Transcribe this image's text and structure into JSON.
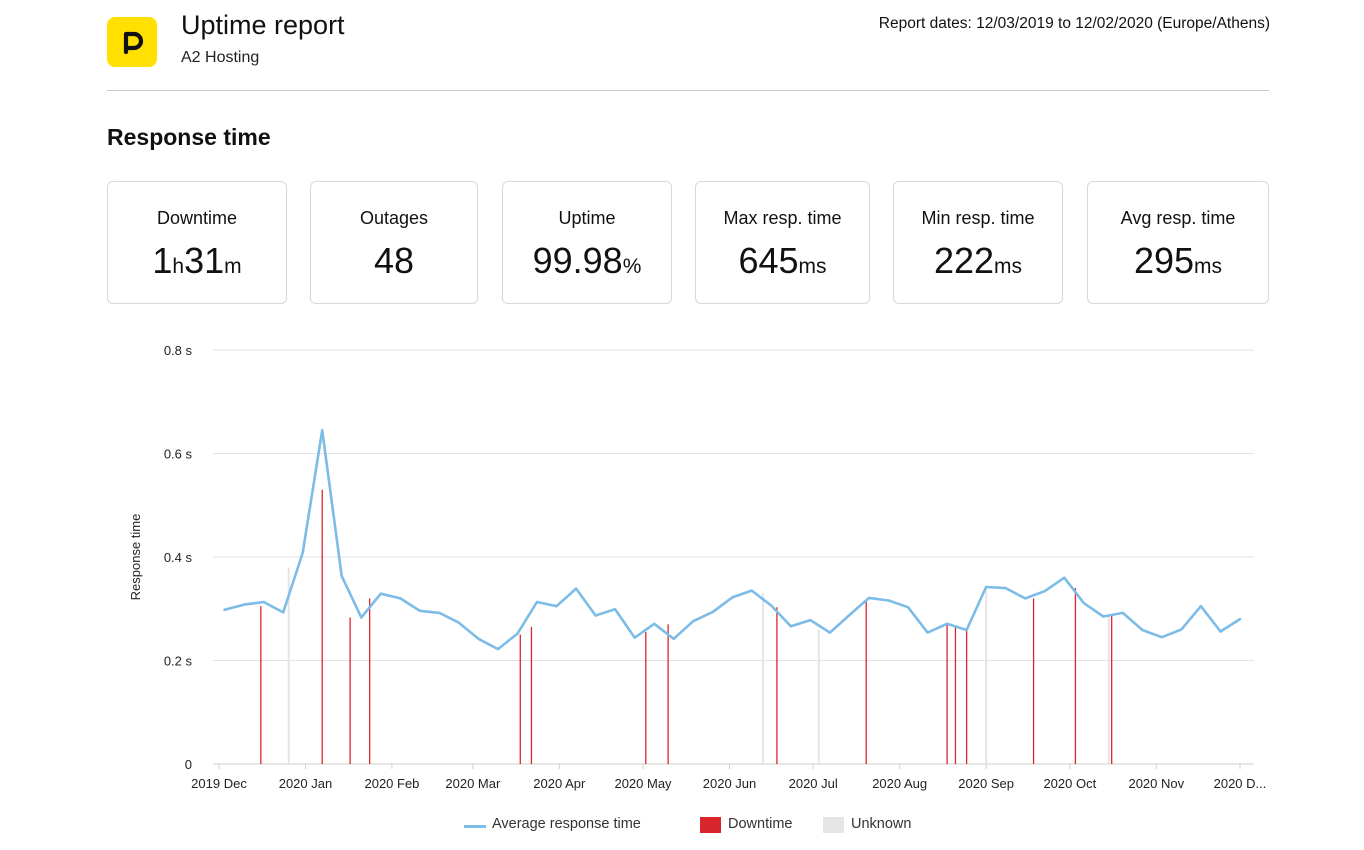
{
  "header": {
    "title": "Uptime report",
    "subtitle": "A2 Hosting",
    "report_dates": "Report dates: 12/03/2019 to 12/02/2020 (Europe/Athens)",
    "logo_icon": "pingdom-p-logo-icon",
    "logo_color": "#ffe000"
  },
  "section": {
    "title": "Response time"
  },
  "stats": [
    {
      "label": "Downtime",
      "value": "1h31m",
      "parts": [
        {
          "t": "1"
        },
        {
          "t": "h",
          "u": true
        },
        {
          "t": "31"
        },
        {
          "t": "m",
          "u": true
        }
      ]
    },
    {
      "label": "Outages",
      "value": "48",
      "parts": [
        {
          "t": "48"
        }
      ]
    },
    {
      "label": "Uptime",
      "value": "99.98%",
      "parts": [
        {
          "t": "99.98"
        },
        {
          "t": "%",
          "u": true
        }
      ]
    },
    {
      "label": "Max resp. time",
      "value": "645ms",
      "parts": [
        {
          "t": "645"
        },
        {
          "t": "ms",
          "u": true
        }
      ]
    },
    {
      "label": "Min resp. time",
      "value": "222ms",
      "parts": [
        {
          "t": "222"
        },
        {
          "t": "ms",
          "u": true
        }
      ]
    },
    {
      "label": "Avg resp. time",
      "value": "295ms",
      "parts": [
        {
          "t": "295"
        },
        {
          "t": "ms",
          "u": true
        }
      ]
    }
  ],
  "chart_data": {
    "type": "line",
    "ylabel": "Response time",
    "xlabel": "",
    "ylim": [
      0,
      0.8
    ],
    "yticks": [
      0,
      0.2,
      0.4,
      0.6,
      0.8
    ],
    "ytick_labels": [
      "0",
      "0.2 s",
      "0.4 s",
      "0.6 s",
      "0.8 s"
    ],
    "xlim": [
      "2019-12-01",
      "2020-12-01"
    ],
    "xtick_dates": [
      "2019-12-01",
      "2020-01-01",
      "2020-02-01",
      "2020-03-01",
      "2020-04-01",
      "2020-05-01",
      "2020-06-01",
      "2020-07-01",
      "2020-08-01",
      "2020-09-01",
      "2020-10-01",
      "2020-11-01",
      "2020-12-01"
    ],
    "xtick_labels": [
      "2019 Dec",
      "2020 Jan",
      "2020 Feb",
      "2020 Mar",
      "2020 Apr",
      "2020 May",
      "2020 Jun",
      "2020 Jul",
      "2020 Aug",
      "2020 Sep",
      "2020 Oct",
      "2020 Nov",
      "2020 D..."
    ],
    "grid": true,
    "legend_position": "bottom",
    "colors": {
      "line": "#7cbce6",
      "downtime": "#d9262c",
      "unknown": "#e5e5e5",
      "grid": "#e3e3e3"
    },
    "series": [
      {
        "name": "Average response time",
        "x": [
          "2019-12-03",
          "2019-12-10",
          "2019-12-17",
          "2019-12-24",
          "2019-12-31",
          "2020-01-07",
          "2020-01-14",
          "2020-01-21",
          "2020-01-28",
          "2020-02-04",
          "2020-02-11",
          "2020-02-18",
          "2020-02-25",
          "2020-03-03",
          "2020-03-10",
          "2020-03-17",
          "2020-03-24",
          "2020-03-31",
          "2020-04-07",
          "2020-04-14",
          "2020-04-21",
          "2020-04-28",
          "2020-05-05",
          "2020-05-12",
          "2020-05-19",
          "2020-05-26",
          "2020-06-02",
          "2020-06-09",
          "2020-06-16",
          "2020-06-23",
          "2020-06-30",
          "2020-07-07",
          "2020-07-14",
          "2020-07-21",
          "2020-07-28",
          "2020-08-04",
          "2020-08-11",
          "2020-08-18",
          "2020-08-25",
          "2020-09-01",
          "2020-09-08",
          "2020-09-15",
          "2020-09-22",
          "2020-09-29",
          "2020-10-06",
          "2020-10-13",
          "2020-10-20",
          "2020-10-27",
          "2020-11-03",
          "2020-11-10",
          "2020-11-17",
          "2020-11-24",
          "2020-12-01"
        ],
        "y": [
          0.298,
          0.308,
          0.313,
          0.293,
          0.408,
          0.645,
          0.363,
          0.283,
          0.329,
          0.32,
          0.296,
          0.292,
          0.273,
          0.242,
          0.222,
          0.252,
          0.313,
          0.305,
          0.339,
          0.287,
          0.299,
          0.244,
          0.271,
          0.242,
          0.276,
          0.294,
          0.322,
          0.335,
          0.306,
          0.266,
          0.278,
          0.254,
          0.288,
          0.321,
          0.316,
          0.303,
          0.254,
          0.271,
          0.259,
          0.342,
          0.34,
          0.32,
          0.334,
          0.36,
          0.311,
          0.285,
          0.292,
          0.259,
          0.245,
          0.26,
          0.305,
          0.256,
          0.28
        ]
      },
      {
        "name": "Downtime",
        "x": [
          "2019-12-16",
          "2020-01-07",
          "2020-01-17",
          "2020-01-24",
          "2020-03-18",
          "2020-03-22",
          "2020-05-02",
          "2020-05-10",
          "2020-06-18",
          "2020-07-20",
          "2020-08-18",
          "2020-08-21",
          "2020-08-25",
          "2020-09-18",
          "2020-10-03",
          "2020-10-16"
        ],
        "y": [
          0.305,
          0.53,
          0.283,
          0.32,
          0.25,
          0.265,
          0.255,
          0.27,
          0.303,
          0.315,
          0.27,
          0.266,
          0.258,
          0.32,
          0.34,
          0.288
        ]
      },
      {
        "name": "Unknown",
        "x": [
          "2019-12-26",
          "2020-06-13",
          "2020-07-03",
          "2020-09-01",
          "2020-10-15"
        ],
        "y": [
          0.38,
          0.33,
          0.26,
          0.34,
          0.286
        ]
      }
    ]
  }
}
